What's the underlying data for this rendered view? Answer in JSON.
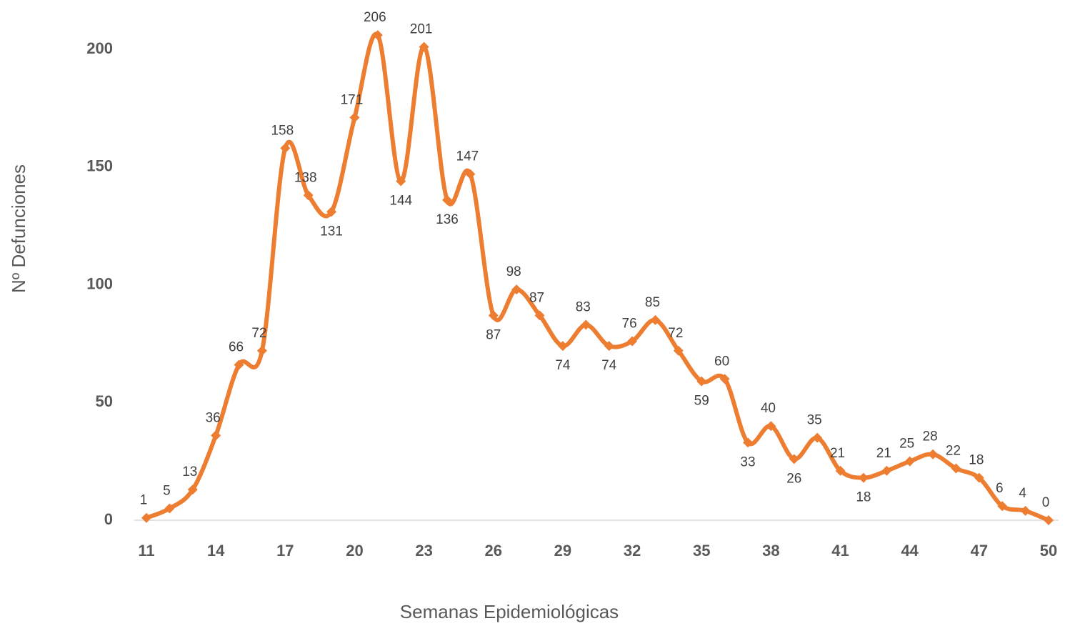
{
  "chart_data": {
    "type": "line",
    "x_label": "Semanas Epidemiológicas",
    "y_label": "Nº Defunciones",
    "x": [
      11,
      12,
      13,
      14,
      15,
      16,
      17,
      18,
      19,
      20,
      21,
      22,
      23,
      24,
      25,
      26,
      27,
      28,
      29,
      30,
      31,
      32,
      33,
      34,
      35,
      36,
      37,
      38,
      39,
      40,
      41,
      42,
      43,
      44,
      45,
      46,
      47,
      48,
      49,
      50
    ],
    "series": [
      {
        "color": "#ED7D31",
        "values": [
          1,
          5,
          13,
          36,
          66,
          72,
          158,
          138,
          131,
          171,
          206,
          144,
          201,
          136,
          147,
          87,
          98,
          87,
          74,
          83,
          74,
          76,
          85,
          72,
          59,
          60,
          33,
          40,
          26,
          35,
          21,
          18,
          21,
          25,
          28,
          22,
          18,
          6,
          4,
          0
        ]
      }
    ],
    "xlim": [
      11,
      50
    ],
    "xticks": [
      11,
      14,
      17,
      20,
      23,
      26,
      29,
      32,
      35,
      38,
      41,
      44,
      47,
      50
    ],
    "ylim": [
      0,
      210
    ],
    "yticks": [
      0,
      50,
      100,
      150,
      200
    ],
    "grid": false
  }
}
